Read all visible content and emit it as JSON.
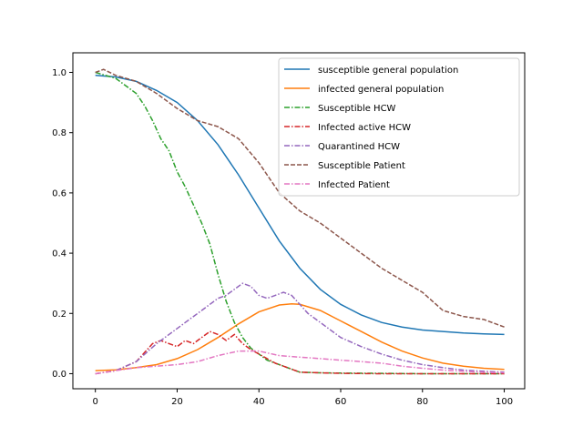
{
  "chart_data": {
    "type": "line",
    "title": "",
    "xlabel": "",
    "ylabel": "",
    "xlim": [
      -5.5,
      105
    ],
    "ylim": [
      -0.05,
      1.065
    ],
    "xticks": [
      "0",
      "20",
      "40",
      "60",
      "80",
      "100"
    ],
    "yticks": [
      "0.0",
      "0.2",
      "0.4",
      "0.6",
      "0.8",
      "1.0"
    ],
    "grid": false,
    "legend_position": "top-right",
    "series": [
      {
        "name": "susceptible general population",
        "style": "solid",
        "color": "#1f77b4",
        "x": [
          0,
          5,
          10,
          15,
          20,
          25,
          30,
          35,
          40,
          45,
          50,
          55,
          60,
          65,
          70,
          75,
          80,
          85,
          90,
          95,
          100
        ],
        "y": [
          0.99,
          0.985,
          0.97,
          0.94,
          0.9,
          0.84,
          0.76,
          0.66,
          0.55,
          0.44,
          0.35,
          0.28,
          0.23,
          0.195,
          0.17,
          0.155,
          0.145,
          0.14,
          0.135,
          0.132,
          0.13
        ]
      },
      {
        "name": "infected general population",
        "style": "solid",
        "color": "#ff7f0e",
        "x": [
          0,
          5,
          10,
          15,
          20,
          25,
          30,
          35,
          40,
          45,
          48,
          50,
          55,
          60,
          65,
          70,
          75,
          80,
          85,
          90,
          95,
          100
        ],
        "y": [
          0.01,
          0.013,
          0.02,
          0.03,
          0.05,
          0.08,
          0.12,
          0.165,
          0.205,
          0.228,
          0.232,
          0.23,
          0.21,
          0.175,
          0.14,
          0.105,
          0.075,
          0.052,
          0.035,
          0.025,
          0.018,
          0.014
        ]
      },
      {
        "name": "Susceptible  HCW",
        "style": "dashdot",
        "color": "#2ca02c",
        "x": [
          0,
          5,
          10,
          12,
          14,
          16,
          18,
          20,
          22,
          24,
          26,
          28,
          30,
          32,
          34,
          36,
          38,
          40,
          42,
          44,
          46,
          48,
          50,
          55,
          60,
          70,
          80,
          90,
          100
        ],
        "y": [
          1.0,
          0.98,
          0.93,
          0.89,
          0.84,
          0.78,
          0.74,
          0.67,
          0.62,
          0.56,
          0.5,
          0.43,
          0.33,
          0.24,
          0.17,
          0.12,
          0.085,
          0.065,
          0.045,
          0.035,
          0.025,
          0.015,
          0.005,
          0.003,
          0.002,
          0.001,
          0.0,
          0.0,
          0.0
        ]
      },
      {
        "name": "Infected active HCW",
        "style": "dashdot",
        "color": "#d62728",
        "x": [
          0,
          5,
          10,
          12,
          14,
          16,
          18,
          20,
          22,
          24,
          26,
          28,
          30,
          32,
          34,
          36,
          38,
          40,
          42,
          44,
          46,
          48,
          50,
          55,
          60,
          70,
          80,
          90,
          100
        ],
        "y": [
          0.0,
          0.01,
          0.04,
          0.07,
          0.1,
          0.11,
          0.1,
          0.09,
          0.11,
          0.1,
          0.12,
          0.14,
          0.13,
          0.11,
          0.13,
          0.1,
          0.08,
          0.065,
          0.05,
          0.035,
          0.025,
          0.015,
          0.005,
          0.003,
          0.001,
          0.0,
          0.0,
          0.0,
          0.0
        ]
      },
      {
        "name": "Quarantined HCW",
        "style": "dashdot",
        "color": "#9467bd",
        "x": [
          0,
          5,
          10,
          15,
          20,
          22,
          24,
          26,
          28,
          30,
          32,
          34,
          36,
          38,
          40,
          42,
          44,
          46,
          48,
          50,
          52,
          55,
          60,
          65,
          70,
          75,
          80,
          85,
          90,
          95,
          100
        ],
        "y": [
          0.0,
          0.01,
          0.04,
          0.1,
          0.15,
          0.17,
          0.19,
          0.21,
          0.23,
          0.25,
          0.26,
          0.28,
          0.3,
          0.29,
          0.26,
          0.25,
          0.26,
          0.27,
          0.26,
          0.23,
          0.2,
          0.17,
          0.12,
          0.09,
          0.065,
          0.045,
          0.03,
          0.02,
          0.012,
          0.008,
          0.005
        ]
      },
      {
        "name": "Susceptible Patient",
        "style": "dashed",
        "color": "#8c564b",
        "x": [
          0,
          2,
          5,
          10,
          15,
          20,
          25,
          30,
          35,
          40,
          45,
          50,
          55,
          60,
          65,
          70,
          75,
          80,
          85,
          90,
          95,
          100
        ],
        "y": [
          1.0,
          1.01,
          0.99,
          0.97,
          0.93,
          0.88,
          0.84,
          0.82,
          0.78,
          0.7,
          0.6,
          0.54,
          0.5,
          0.45,
          0.4,
          0.35,
          0.31,
          0.27,
          0.21,
          0.19,
          0.18,
          0.155
        ]
      },
      {
        "name": "Infected Patient",
        "style": "dashdot",
        "color": "#e377c2",
        "x": [
          0,
          5,
          10,
          15,
          20,
          25,
          30,
          35,
          40,
          45,
          50,
          55,
          60,
          65,
          70,
          75,
          80,
          85,
          90,
          95,
          100
        ],
        "y": [
          0.0,
          0.01,
          0.02,
          0.025,
          0.03,
          0.04,
          0.06,
          0.075,
          0.075,
          0.06,
          0.055,
          0.05,
          0.045,
          0.04,
          0.035,
          0.025,
          0.018,
          0.012,
          0.008,
          0.005,
          0.003
        ]
      }
    ]
  }
}
